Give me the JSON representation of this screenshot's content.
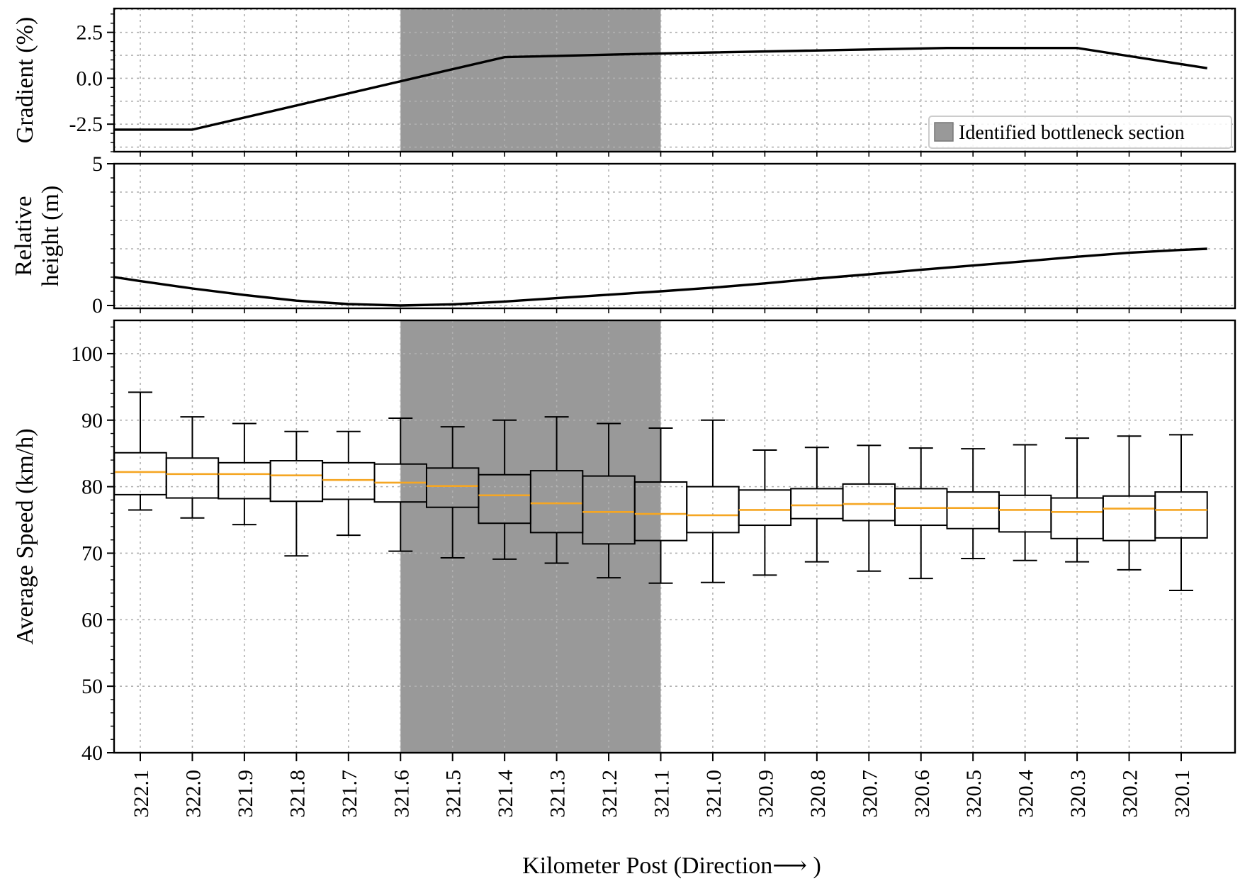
{
  "chart_data": {
    "type": "box",
    "xlabel": "Kilometer Post (Direction⟶ )",
    "categories": [
      "322.1",
      "322.0",
      "321.9",
      "321.8",
      "321.7",
      "321.6",
      "321.5",
      "321.4",
      "321.3",
      "321.2",
      "321.1",
      "321.0",
      "320.9",
      "320.8",
      "320.7",
      "320.6",
      "320.5",
      "320.4",
      "320.3",
      "320.2",
      "320.1"
    ],
    "highlight": {
      "label": "Identified bottleneck section",
      "from": "321.6",
      "to": "321.1",
      "color": "#999999"
    },
    "legend": {
      "position": "lower-right",
      "entries": [
        "Identified bottleneck section"
      ]
    },
    "grid": true,
    "panels": [
      {
        "id": "gradient",
        "type": "line",
        "ylabel": "Gradient (%)",
        "ylim": [
          -4.0,
          3.8
        ],
        "yticks": [
          -2.5,
          0.0,
          2.5
        ],
        "ytick_labels": [
          "-2.5",
          "0.0",
          "2.5"
        ],
        "series": [
          {
            "x": [
              322.15,
              322.0,
              321.4,
              321.1,
              320.55,
              320.3,
              320.05
            ],
            "y": [
              -2.8,
              -2.8,
              1.15,
              1.35,
              1.65,
              1.65,
              0.55
            ]
          }
        ]
      },
      {
        "id": "height",
        "type": "line",
        "ylabel": [
          "Relative",
          "height (m)"
        ],
        "ylim": [
          -0.1,
          5.0
        ],
        "yticks": [
          0,
          5
        ],
        "ytick_labels": [
          "0",
          "5"
        ],
        "series": [
          {
            "x": [
              322.15,
              322.1,
              322.0,
              321.9,
              321.8,
              321.7,
              321.6,
              321.5,
              321.4,
              321.3,
              321.2,
              321.1,
              321.0,
              320.9,
              320.8,
              320.7,
              320.6,
              320.5,
              320.4,
              320.3,
              320.2,
              320.1,
              320.05
            ],
            "y": [
              1.0,
              0.86,
              0.6,
              0.37,
              0.17,
              0.05,
              0.0,
              0.04,
              0.14,
              0.26,
              0.38,
              0.5,
              0.63,
              0.78,
              0.95,
              1.1,
              1.26,
              1.41,
              1.56,
              1.72,
              1.86,
              1.96,
              2.0
            ]
          }
        ]
      },
      {
        "id": "speed",
        "type": "box",
        "ylabel": "Average Speed (km/h)",
        "ylim": [
          40,
          105
        ],
        "yticks": [
          40,
          50,
          60,
          70,
          80,
          90,
          100
        ],
        "ytick_labels": [
          "40",
          "50",
          "60",
          "70",
          "80",
          "90",
          "100"
        ],
        "median_color": "#f5a623",
        "boxes": [
          {
            "whislo": 76.5,
            "q1": 78.8,
            "med": 82.2,
            "q3": 85.1,
            "whishi": 94.2
          },
          {
            "whislo": 75.3,
            "q1": 78.3,
            "med": 81.9,
            "q3": 84.3,
            "whishi": 90.5
          },
          {
            "whislo": 74.3,
            "q1": 78.2,
            "med": 81.9,
            "q3": 83.6,
            "whishi": 89.5
          },
          {
            "whislo": 69.6,
            "q1": 77.8,
            "med": 81.7,
            "q3": 83.9,
            "whishi": 88.3
          },
          {
            "whislo": 72.7,
            "q1": 78.1,
            "med": 81.0,
            "q3": 83.6,
            "whishi": 88.3
          },
          {
            "whislo": 70.3,
            "q1": 77.7,
            "med": 80.6,
            "q3": 83.4,
            "whishi": 90.3
          },
          {
            "whislo": 69.3,
            "q1": 76.9,
            "med": 80.1,
            "q3": 82.8,
            "whishi": 89.0
          },
          {
            "whislo": 69.1,
            "q1": 74.5,
            "med": 78.7,
            "q3": 81.8,
            "whishi": 90.0
          },
          {
            "whislo": 68.5,
            "q1": 73.1,
            "med": 77.5,
            "q3": 82.4,
            "whishi": 90.5
          },
          {
            "whislo": 66.3,
            "q1": 71.4,
            "med": 76.2,
            "q3": 81.6,
            "whishi": 89.5
          },
          {
            "whislo": 65.5,
            "q1": 71.9,
            "med": 75.9,
            "q3": 80.7,
            "whishi": 88.8
          },
          {
            "whislo": 65.6,
            "q1": 73.1,
            "med": 75.7,
            "q3": 80.0,
            "whishi": 90.0
          },
          {
            "whislo": 66.7,
            "q1": 74.2,
            "med": 76.5,
            "q3": 79.5,
            "whishi": 85.5
          },
          {
            "whislo": 68.7,
            "q1": 75.2,
            "med": 77.2,
            "q3": 79.7,
            "whishi": 85.9
          },
          {
            "whislo": 67.3,
            "q1": 74.9,
            "med": 77.4,
            "q3": 80.4,
            "whishi": 86.2
          },
          {
            "whislo": 66.2,
            "q1": 74.2,
            "med": 76.8,
            "q3": 79.7,
            "whishi": 85.8
          },
          {
            "whislo": 69.2,
            "q1": 73.7,
            "med": 76.8,
            "q3": 79.2,
            "whishi": 85.7
          },
          {
            "whislo": 68.9,
            "q1": 73.2,
            "med": 76.5,
            "q3": 78.7,
            "whishi": 86.3
          },
          {
            "whislo": 68.7,
            "q1": 72.2,
            "med": 76.2,
            "q3": 78.3,
            "whishi": 87.3
          },
          {
            "whislo": 67.5,
            "q1": 71.9,
            "med": 76.7,
            "q3": 78.6,
            "whishi": 87.6
          },
          {
            "whislo": 64.4,
            "q1": 72.3,
            "med": 76.5,
            "q3": 79.2,
            "whishi": 87.8
          }
        ]
      }
    ]
  }
}
